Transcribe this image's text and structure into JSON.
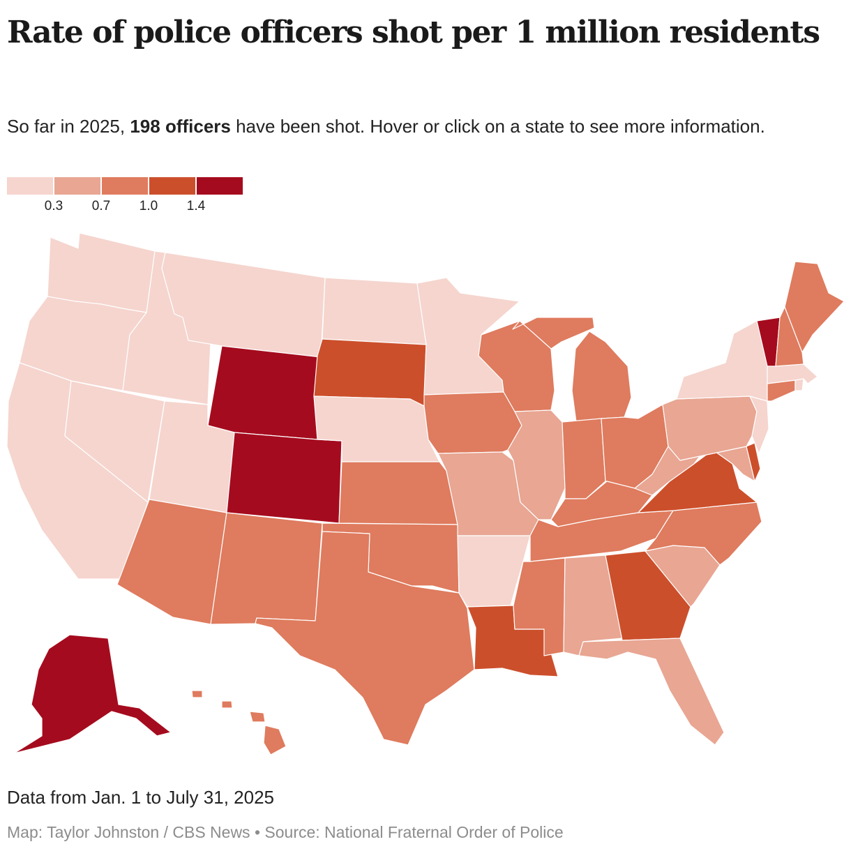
{
  "title": "Rate of police officers shot per 1 million residents",
  "subtitle": {
    "prefix": "So far in 2025, ",
    "highlight": "198 officers",
    "suffix": " have been shot. Hover or click on a state to see more information."
  },
  "legend": {
    "colors": [
      "#f5d5ce",
      "#e8a693",
      "#df7b5e",
      "#cc4f2b",
      "#a50b1e"
    ],
    "ticks": [
      "0.3",
      "0.7",
      "1.0",
      "1.4"
    ]
  },
  "colors": {
    "bin0": "#f5d5ce",
    "bin1": "#e8a693",
    "bin2": "#df7b5e",
    "bin3": "#cc4f2b",
    "bin4": "#a50b1e"
  },
  "states": [
    {
      "name": "Washington",
      "bin": 0
    },
    {
      "name": "Oregon",
      "bin": 0
    },
    {
      "name": "California",
      "bin": 0
    },
    {
      "name": "Idaho",
      "bin": 0
    },
    {
      "name": "Nevada",
      "bin": 0
    },
    {
      "name": "Montana",
      "bin": 0
    },
    {
      "name": "Wyoming",
      "bin": 4
    },
    {
      "name": "Utah",
      "bin": 0
    },
    {
      "name": "Colorado",
      "bin": 4
    },
    {
      "name": "Arizona",
      "bin": 2
    },
    {
      "name": "New Mexico",
      "bin": 2
    },
    {
      "name": "North Dakota",
      "bin": 0
    },
    {
      "name": "South Dakota",
      "bin": 3
    },
    {
      "name": "Nebraska",
      "bin": 0
    },
    {
      "name": "Kansas",
      "bin": 2
    },
    {
      "name": "Oklahoma",
      "bin": 2
    },
    {
      "name": "Texas",
      "bin": 2
    },
    {
      "name": "Minnesota",
      "bin": 0
    },
    {
      "name": "Iowa",
      "bin": 2
    },
    {
      "name": "Missouri",
      "bin": 1
    },
    {
      "name": "Arkansas",
      "bin": 0
    },
    {
      "name": "Louisiana",
      "bin": 3
    },
    {
      "name": "Wisconsin",
      "bin": 2
    },
    {
      "name": "Illinois",
      "bin": 1
    },
    {
      "name": "Michigan",
      "bin": 2
    },
    {
      "name": "Indiana",
      "bin": 2
    },
    {
      "name": "Ohio",
      "bin": 2
    },
    {
      "name": "Kentucky",
      "bin": 2
    },
    {
      "name": "Tennessee",
      "bin": 2
    },
    {
      "name": "Mississippi",
      "bin": 2
    },
    {
      "name": "Alabama",
      "bin": 1
    },
    {
      "name": "Georgia",
      "bin": 3
    },
    {
      "name": "Florida",
      "bin": 1
    },
    {
      "name": "South Carolina",
      "bin": 1
    },
    {
      "name": "North Carolina",
      "bin": 2
    },
    {
      "name": "Virginia",
      "bin": 3
    },
    {
      "name": "West Virginia",
      "bin": 1
    },
    {
      "name": "Maryland",
      "bin": 1
    },
    {
      "name": "Delaware",
      "bin": 3
    },
    {
      "name": "Pennsylvania",
      "bin": 1
    },
    {
      "name": "New Jersey",
      "bin": 0
    },
    {
      "name": "New York",
      "bin": 0
    },
    {
      "name": "Connecticut",
      "bin": 2
    },
    {
      "name": "Rhode Island",
      "bin": 0
    },
    {
      "name": "Massachusetts",
      "bin": 0
    },
    {
      "name": "Vermont",
      "bin": 4
    },
    {
      "name": "New Hampshire",
      "bin": 2
    },
    {
      "name": "Maine",
      "bin": 2
    },
    {
      "name": "Alaska",
      "bin": 4
    },
    {
      "name": "Hawaii",
      "bin": 2
    }
  ],
  "footer": {
    "note": "Data from Jan. 1 to July 31, 2025",
    "credit": "Map: Taylor Johnston / CBS News • Source: National Fraternal Order of Police"
  }
}
